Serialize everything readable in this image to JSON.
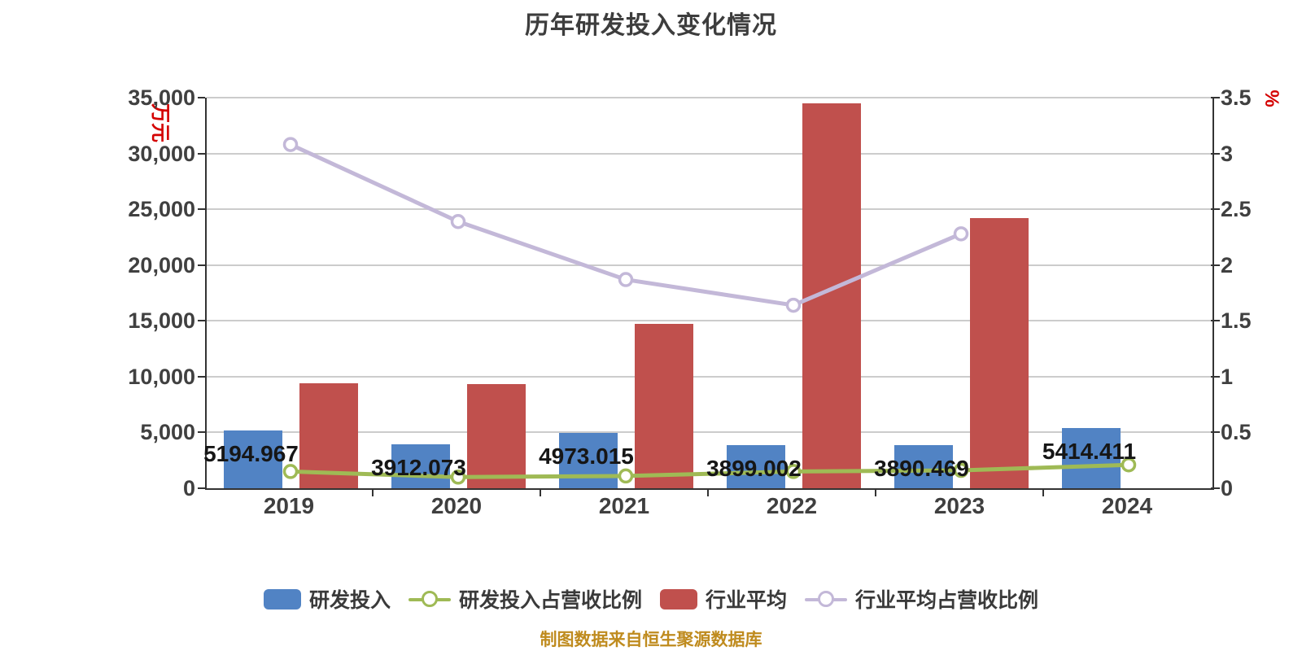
{
  "title": "历年研发投入变化情况",
  "footer": "制图数据来自恒生聚源数据库",
  "colors": {
    "background": "#ffffff",
    "title_text": "#3d3d3d",
    "axis_line": "#333333",
    "gridline": "#cccccc",
    "tick_label": "#404040",
    "bar_value_label": "#161616",
    "unit_label_red": "#d40000",
    "footer_gold": "#bf8b1e",
    "blue_bar": "#5183c4",
    "red_bar": "#c0504d",
    "green_line": "#9fba55",
    "purple_line": "#c3b8d8"
  },
  "chart_data": {
    "type": "bar",
    "subtype": "grouped-bars-with-two-percentage-lines",
    "title": "历年研发投入变化情况",
    "categories": [
      "2019",
      "2020",
      "2021",
      "2022",
      "2023",
      "2024"
    ],
    "left_axis": {
      "min": 0,
      "max": 35000,
      "step": 5000,
      "unit": "万元",
      "tick_labels": [
        "0",
        "5,000",
        "10,000",
        "15,000",
        "20,000",
        "25,000",
        "30,000",
        "35,000"
      ]
    },
    "right_axis": {
      "min": 0,
      "max": 3.5,
      "step": 0.5,
      "unit": "%",
      "tick_labels": [
        "0",
        "0.5",
        "1",
        "1.5",
        "2",
        "2.5",
        "3",
        "3.5"
      ]
    },
    "grid": true,
    "legend_position": "bottom",
    "series": [
      {
        "key": "rd-investment",
        "name": "研发投入",
        "type": "bar",
        "axis": "left",
        "color": "#5183c4",
        "values": [
          5194.967,
          3912.073,
          4973.015,
          3899.002,
          3890.469,
          5414.411
        ],
        "labels": [
          "5194.967",
          "3912.073",
          "4973.015",
          "3899.002",
          "3890.469",
          "5414.411"
        ]
      },
      {
        "key": "industry-average",
        "name": "行业平均",
        "type": "bar",
        "axis": "left",
        "color": "#c0504d",
        "values": [
          9400,
          9350,
          14700,
          34480,
          24210,
          null
        ],
        "labels": [
          null,
          null,
          null,
          null,
          null,
          null
        ]
      },
      {
        "key": "rd-ratio",
        "name": "研发投入占营收比例",
        "type": "line",
        "axis": "right",
        "color": "#9fba55",
        "values": [
          0.15,
          0.1,
          0.11,
          0.15,
          0.16,
          0.21
        ]
      },
      {
        "key": "industry-ratio",
        "name": "行业平均占营收比例",
        "type": "line",
        "axis": "right",
        "color": "#c3b8d8",
        "values": [
          3.08,
          2.39,
          1.87,
          1.64,
          2.28,
          null
        ]
      }
    ]
  },
  "legend": {
    "items": [
      {
        "label": "研发投入",
        "marker": "bar",
        "color": "#5183c4"
      },
      {
        "label": "研发投入占营收比例",
        "marker": "line",
        "color": "#9fba55"
      },
      {
        "label": "行业平均",
        "marker": "bar",
        "color": "#c0504d"
      },
      {
        "label": "行业平均占营收比例",
        "marker": "line",
        "color": "#c3b8d8"
      }
    ]
  }
}
